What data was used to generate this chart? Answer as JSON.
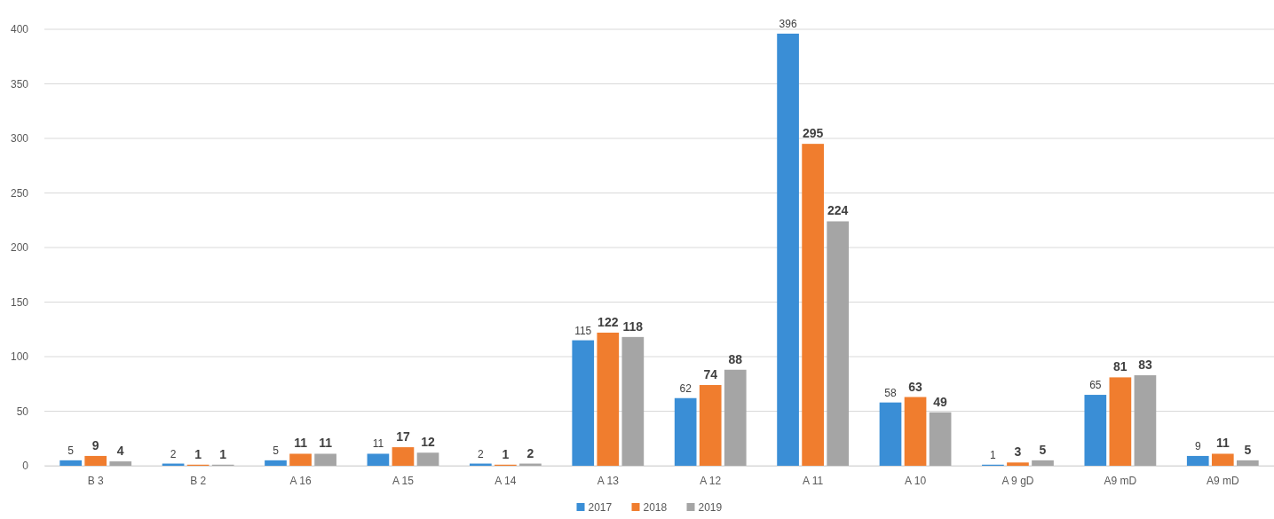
{
  "chart_data": {
    "type": "bar",
    "categories": [
      "B 3",
      "B 2",
      "A 16",
      "A 15",
      "A 14",
      "A 13",
      "A 12",
      "A 11",
      "A 10",
      "A 9 gD",
      "A9 mD",
      "A9 mD"
    ],
    "series": [
      {
        "name": "2017",
        "color": "#3a8ed6",
        "values": [
          5,
          2,
          5,
          11,
          2,
          115,
          62,
          396,
          58,
          1,
          65,
          9
        ]
      },
      {
        "name": "2018",
        "color": "#f07d2e",
        "values": [
          9,
          1,
          11,
          17,
          1,
          122,
          74,
          295,
          63,
          3,
          81,
          11
        ]
      },
      {
        "name": "2019",
        "color": "#a5a5a5",
        "values": [
          4,
          1,
          11,
          12,
          2,
          118,
          88,
          224,
          49,
          5,
          83,
          5
        ]
      }
    ],
    "ylim": [
      0,
      400
    ],
    "yticks": [
      0,
      50,
      100,
      150,
      200,
      250,
      300,
      350,
      400
    ],
    "grid": "y",
    "legend": "bottom",
    "data_labels": true
  }
}
